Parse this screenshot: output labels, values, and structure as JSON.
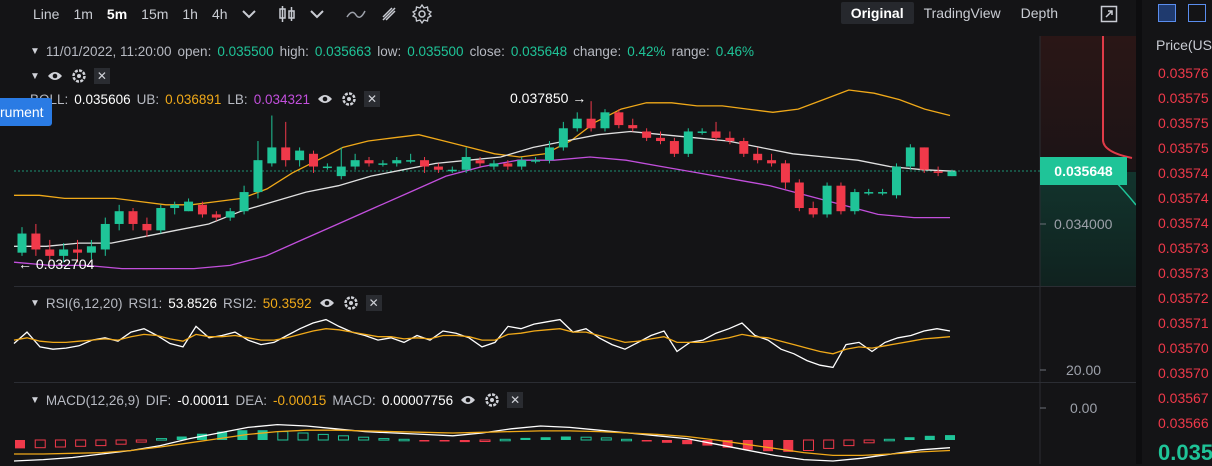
{
  "toolbar": {
    "items": [
      "Line",
      "1m",
      "5m",
      "15m",
      "1h",
      "4h"
    ],
    "active": "5m",
    "view_tabs": [
      "Original",
      "TradingView",
      "Depth"
    ],
    "active_view": "Original"
  },
  "legend_main": {
    "date": "11/01/2022, 11:20:00",
    "open_k": "open:",
    "open_v": "0.035500",
    "high_k": "high:",
    "high_v": "0.035663",
    "low_k": "low:",
    "low_v": "0.035500",
    "close_k": "close:",
    "close_v": "0.035648",
    "change_k": "change:",
    "change_v": "0.42%",
    "range_k": "range:",
    "range_v": "0.46%"
  },
  "legend_boll": {
    "name": "BOLL:",
    "value": "0.035606",
    "ub_k": "UB:",
    "ub_v": "0.036891",
    "lb_k": "LB:",
    "lb_v": "0.034321"
  },
  "legend_rsi": {
    "name": "RSI(6,12,20)",
    "rsi1_k": "RSI1:",
    "rsi1_v": "53.8526",
    "rsi2_k": "RSI2:",
    "rsi2_v": "50.3592"
  },
  "legend_macd": {
    "name": "MACD(12,26,9)",
    "dif_k": "DIF:",
    "dif_v": "-0.00011",
    "dea_k": "DEA:",
    "dea_v": "-0.00015",
    "macd_k": "MACD:",
    "macd_v": "0.00007756"
  },
  "tooltip_text": "rument",
  "annotations": {
    "high_label": "0.037850 →",
    "low_label": "← 0.032704"
  },
  "axis": {
    "price_tag": "0.035648",
    "main_tick": "0.034000",
    "rsi_tick": "20.00",
    "macd_tick": "0.00"
  },
  "right_panel": {
    "header": "Price(US",
    "prices": [
      "0.03576",
      "0.03575",
      "0.03575",
      "0.03575",
      "0.03574",
      "0.03574",
      "0.03574",
      "0.03573",
      "0.03573",
      "0.03572",
      "0.03571",
      "0.03570",
      "0.03570",
      "0.03567",
      "0.03566"
    ],
    "last_price": "0.035"
  },
  "colors": {
    "up": "#1fc498",
    "down": "#f0394a",
    "ub": "#f0a919",
    "lb": "#c24fdc",
    "mid": "#e0e0e0",
    "rsi1": "#ffffff",
    "rsi2": "#f0a919",
    "background": "#141416"
  },
  "chart_data": [
    {
      "type": "candlestick",
      "y_ticks": [
        0.034
      ],
      "candles": [
        {
          "o": 0.0331,
          "c": 0.0337,
          "h": 0.0339,
          "l": 0.033
        },
        {
          "o": 0.0337,
          "c": 0.0332,
          "h": 0.034,
          "l": 0.033
        },
        {
          "o": 0.0332,
          "c": 0.033,
          "h": 0.0335,
          "l": 0.0328
        },
        {
          "o": 0.033,
          "c": 0.0332,
          "h": 0.0334,
          "l": 0.0328
        },
        {
          "o": 0.0332,
          "c": 0.0331,
          "h": 0.0335,
          "l": 0.0328
        },
        {
          "o": 0.0331,
          "c": 0.0333,
          "h": 0.0335,
          "l": 0.0329
        },
        {
          "o": 0.0332,
          "c": 0.034,
          "h": 0.0342,
          "l": 0.033
        },
        {
          "o": 0.034,
          "c": 0.0344,
          "h": 0.0346,
          "l": 0.0338
        },
        {
          "o": 0.0344,
          "c": 0.034,
          "h": 0.0345,
          "l": 0.0338
        },
        {
          "o": 0.034,
          "c": 0.0338,
          "h": 0.0342,
          "l": 0.0336
        },
        {
          "o": 0.0338,
          "c": 0.0345,
          "h": 0.0346,
          "l": 0.0337
        },
        {
          "o": 0.0345,
          "c": 0.0346,
          "h": 0.0347,
          "l": 0.0343
        },
        {
          "o": 0.0344,
          "c": 0.0347,
          "h": 0.0348,
          "l": 0.0344
        },
        {
          "o": 0.0346,
          "c": 0.0343,
          "h": 0.0347,
          "l": 0.0342
        },
        {
          "o": 0.0343,
          "c": 0.0342,
          "h": 0.0344,
          "l": 0.0341
        },
        {
          "o": 0.0342,
          "c": 0.0344,
          "h": 0.0345,
          "l": 0.0341
        },
        {
          "o": 0.0344,
          "c": 0.035,
          "h": 0.0352,
          "l": 0.0343
        },
        {
          "o": 0.035,
          "c": 0.036,
          "h": 0.0366,
          "l": 0.0348
        },
        {
          "o": 0.0359,
          "c": 0.0364,
          "h": 0.0374,
          "l": 0.0358
        },
        {
          "o": 0.0364,
          "c": 0.036,
          "h": 0.0372,
          "l": 0.0358
        },
        {
          "o": 0.036,
          "c": 0.0363,
          "h": 0.0364,
          "l": 0.0358
        },
        {
          "o": 0.0362,
          "c": 0.0358,
          "h": 0.0363,
          "l": 0.0356
        },
        {
          "o": 0.0358,
          "c": 0.0358,
          "h": 0.0359,
          "l": 0.0357
        },
        {
          "o": 0.0355,
          "c": 0.0358,
          "h": 0.0364,
          "l": 0.0354
        },
        {
          "o": 0.0358,
          "c": 0.036,
          "h": 0.0362,
          "l": 0.0357
        },
        {
          "o": 0.036,
          "c": 0.0359,
          "h": 0.0361,
          "l": 0.0358
        },
        {
          "o": 0.0359,
          "c": 0.0359,
          "h": 0.036,
          "l": 0.0358
        },
        {
          "o": 0.0359,
          "c": 0.036,
          "h": 0.0361,
          "l": 0.0358
        },
        {
          "o": 0.036,
          "c": 0.036,
          "h": 0.0362,
          "l": 0.0359
        },
        {
          "o": 0.036,
          "c": 0.0358,
          "h": 0.0361,
          "l": 0.0356
        },
        {
          "o": 0.0358,
          "c": 0.0357,
          "h": 0.0359,
          "l": 0.0356
        },
        {
          "o": 0.0357,
          "c": 0.0357,
          "h": 0.0358,
          "l": 0.0356
        },
        {
          "o": 0.0357,
          "c": 0.0361,
          "h": 0.0364,
          "l": 0.0356
        },
        {
          "o": 0.036,
          "c": 0.0359,
          "h": 0.0361,
          "l": 0.0358
        },
        {
          "o": 0.0358,
          "c": 0.0359,
          "h": 0.036,
          "l": 0.0357
        },
        {
          "o": 0.0359,
          "c": 0.0358,
          "h": 0.036,
          "l": 0.0357
        },
        {
          "o": 0.0358,
          "c": 0.036,
          "h": 0.0361,
          "l": 0.0357
        },
        {
          "o": 0.036,
          "c": 0.036,
          "h": 0.0361,
          "l": 0.0359
        },
        {
          "o": 0.036,
          "c": 0.0364,
          "h": 0.0366,
          "l": 0.0359
        },
        {
          "o": 0.0364,
          "c": 0.037,
          "h": 0.0372,
          "l": 0.0363
        },
        {
          "o": 0.037,
          "c": 0.0373,
          "h": 0.0375,
          "l": 0.0369
        },
        {
          "o": 0.0373,
          "c": 0.037,
          "h": 0.03785,
          "l": 0.0369
        },
        {
          "o": 0.037,
          "c": 0.0375,
          "h": 0.0376,
          "l": 0.0369
        },
        {
          "o": 0.0375,
          "c": 0.0371,
          "h": 0.0376,
          "l": 0.037
        },
        {
          "o": 0.0371,
          "c": 0.037,
          "h": 0.0373,
          "l": 0.0369
        },
        {
          "o": 0.0369,
          "c": 0.0367,
          "h": 0.037,
          "l": 0.0366
        },
        {
          "o": 0.0367,
          "c": 0.0366,
          "h": 0.0369,
          "l": 0.0365
        },
        {
          "o": 0.0366,
          "c": 0.0362,
          "h": 0.0367,
          "l": 0.0361
        },
        {
          "o": 0.0362,
          "c": 0.0369,
          "h": 0.037,
          "l": 0.0361
        },
        {
          "o": 0.0369,
          "c": 0.0369,
          "h": 0.037,
          "l": 0.0368
        },
        {
          "o": 0.0369,
          "c": 0.0367,
          "h": 0.0372,
          "l": 0.0366
        },
        {
          "o": 0.0367,
          "c": 0.0366,
          "h": 0.0369,
          "l": 0.0365
        },
        {
          "o": 0.0366,
          "c": 0.0362,
          "h": 0.0367,
          "l": 0.0361
        },
        {
          "o": 0.0362,
          "c": 0.036,
          "h": 0.0364,
          "l": 0.0359
        },
        {
          "o": 0.036,
          "c": 0.0359,
          "h": 0.0362,
          "l": 0.0358
        },
        {
          "o": 0.0359,
          "c": 0.0353,
          "h": 0.036,
          "l": 0.0351
        },
        {
          "o": 0.0353,
          "c": 0.0345,
          "h": 0.0354,
          "l": 0.0344
        },
        {
          "o": 0.0345,
          "c": 0.0343,
          "h": 0.0347,
          "l": 0.0342
        },
        {
          "o": 0.0343,
          "c": 0.0352,
          "h": 0.0353,
          "l": 0.0342
        },
        {
          "o": 0.0352,
          "c": 0.0344,
          "h": 0.0353,
          "l": 0.0343
        },
        {
          "o": 0.0344,
          "c": 0.035,
          "h": 0.0351,
          "l": 0.0343
        },
        {
          "o": 0.035,
          "c": 0.035,
          "h": 0.0351,
          "l": 0.0349
        },
        {
          "o": 0.035,
          "c": 0.035,
          "h": 0.0351,
          "l": 0.0349
        },
        {
          "o": 0.0349,
          "c": 0.0358,
          "h": 0.0359,
          "l": 0.0348
        },
        {
          "o": 0.0358,
          "c": 0.0364,
          "h": 0.0365,
          "l": 0.0357
        },
        {
          "o": 0.0364,
          "c": 0.0357,
          "h": 0.0364,
          "l": 0.0356
        },
        {
          "o": 0.03565,
          "c": 0.0356,
          "h": 0.0358,
          "l": 0.0355
        },
        {
          "o": 0.0355,
          "c": 0.03565,
          "h": 0.0357,
          "l": 0.0355
        }
      ],
      "boll_ub": [
        0.0349,
        0.0349,
        0.0348,
        0.0348,
        0.0348,
        0.0347,
        0.0346,
        0.0346,
        0.0347,
        0.0348,
        0.0351,
        0.0356,
        0.036,
        0.0364,
        0.0366,
        0.0367,
        0.0368,
        0.0366,
        0.0364,
        0.0362,
        0.0361,
        0.0362,
        0.0366,
        0.0372,
        0.0376,
        0.0378,
        0.0378,
        0.0377,
        0.0377,
        0.0376,
        0.0375,
        0.0376,
        0.0379,
        0.0382,
        0.0381,
        0.0379,
        0.0376,
        0.0374
      ],
      "boll_mid": [
        0.0333,
        0.0333,
        0.0334,
        0.0334,
        0.0336,
        0.0338,
        0.034,
        0.0344,
        0.0347,
        0.035,
        0.0352,
        0.0355,
        0.0357,
        0.0359,
        0.036,
        0.0361,
        0.0364,
        0.0366,
        0.0368,
        0.0369,
        0.0368,
        0.0367,
        0.0366,
        0.0364,
        0.0362,
        0.0361,
        0.036,
        0.0358,
        0.0357,
        0.03565
      ],
      "boll_lb": [
        0.0328,
        0.0327,
        0.0327,
        0.0326,
        0.0326,
        0.0326,
        0.0327,
        0.033,
        0.0335,
        0.034,
        0.0345,
        0.035,
        0.0355,
        0.0358,
        0.036,
        0.036,
        0.0361,
        0.036,
        0.0358,
        0.0356,
        0.0354,
        0.0352,
        0.0349,
        0.0346,
        0.0343,
        0.0342,
        0.0342
      ],
      "high_label": 0.03785,
      "low_label": 0.032704
    },
    {
      "type": "line",
      "series": [
        {
          "name": "RSI1",
          "values": [
            45,
            55,
            42,
            40,
            41,
            43,
            48,
            50,
            47,
            55,
            58,
            52,
            45,
            42,
            60,
            50,
            52,
            55,
            48,
            44,
            46,
            52,
            58,
            63,
            66,
            60,
            55,
            52,
            48,
            50,
            46,
            52,
            48,
            56,
            54,
            50,
            42,
            46,
            60,
            58,
            62,
            64,
            66,
            55,
            58,
            50,
            44,
            40,
            46,
            52,
            56,
            38,
            46,
            48,
            54,
            58,
            63,
            52,
            48,
            40,
            36,
            30,
            26,
            24,
            44,
            46,
            38,
            46,
            50,
            52,
            56,
            58,
            56
          ]
        },
        {
          "name": "RSI2",
          "values": [
            48,
            50,
            47,
            46,
            46,
            47,
            48,
            49,
            48,
            51,
            53,
            52,
            49,
            47,
            53,
            51,
            51,
            52,
            50,
            48,
            48,
            50,
            53,
            56,
            58,
            57,
            55,
            53,
            51,
            51,
            49,
            50,
            49,
            52,
            52,
            51,
            48,
            48,
            53,
            54,
            56,
            57,
            58,
            55,
            55,
            52,
            49,
            46,
            47,
            49,
            51,
            46,
            46,
            46,
            48,
            50,
            53,
            51,
            50,
            47,
            44,
            41,
            38,
            36,
            40,
            42,
            41,
            43,
            45,
            47,
            49,
            50,
            51
          ]
        }
      ],
      "y_ticks": [
        20
      ]
    },
    {
      "type": "bar",
      "series": [
        {
          "name": "MACD",
          "values": [
            -0.00012,
            -0.00011,
            -0.0001,
            -9e-05,
            -8e-05,
            -6e-05,
            -3e-05,
            2e-05,
            5e-05,
            9e-05,
            0.00012,
            0.00014,
            0.00014,
            0.00012,
            0.0001,
            8e-05,
            6e-05,
            4e-05,
            2e-05,
            1e-05,
            -1e-05,
            -2e-05,
            -3e-05,
            -2e-05,
            1e-05,
            3e-05,
            4e-05,
            5e-05,
            4e-05,
            3e-05,
            1e-05,
            -2e-05,
            -4e-05,
            -6e-05,
            -8e-05,
            -0.00011,
            -0.00014,
            -0.00016,
            -0.00017,
            -0.00015,
            -0.00012,
            -8e-05,
            -4e-05,
            1e-05,
            4e-05,
            6e-05,
            7e-05
          ]
        },
        {
          "name": "DIF",
          "values": [
            -0.0003,
            -0.00028,
            -0.00025,
            -0.0002,
            -0.00015,
            -8e-05,
            2e-05,
            0.0001,
            0.00018,
            0.00022,
            0.0002,
            0.00016,
            0.00012,
            0.0001,
            8e-05,
            6e-05,
            0.0001,
            0.00016,
            0.0002,
            0.00018,
            0.00014,
            0.0001,
            6e-05,
            2e-05,
            -6e-05,
            -0.00014,
            -0.00022,
            -0.00028,
            -0.0003,
            -0.00026,
            -0.0002,
            -0.00014,
            -0.00011
          ]
        },
        {
          "name": "DEA",
          "values": [
            -0.0002,
            -0.0002,
            -0.00019,
            -0.00018,
            -0.00015,
            -0.0001,
            -4e-05,
            2e-05,
            8e-05,
            0.00012,
            0.00014,
            0.00014,
            0.00013,
            0.00012,
            0.00011,
            0.0001,
            0.00011,
            0.00012,
            0.00013,
            0.00013,
            0.00012,
            0.0001,
            8e-05,
            5e-05,
            0.0,
            -6e-05,
            -0.00012,
            -0.00018,
            -0.00022,
            -0.00022,
            -0.0002,
            -0.00017,
            -0.00015
          ]
        }
      ],
      "y_ticks": [
        0.0
      ]
    }
  ]
}
